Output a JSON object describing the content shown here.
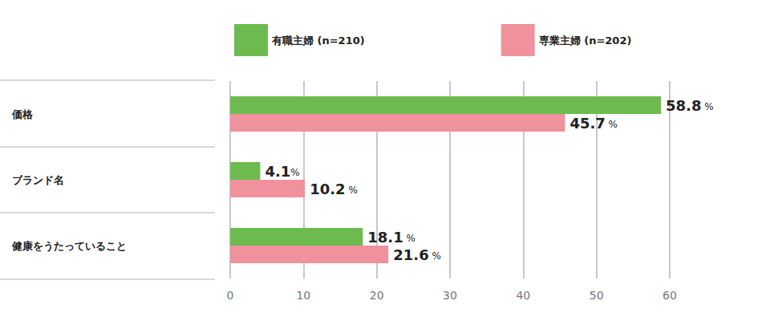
{
  "chart_data": {
    "type": "bar",
    "orientation": "horizontal",
    "categories": [
      "価格",
      "ブランド名",
      "健康をうたっていること"
    ],
    "series": [
      {
        "name": "有職主婦 (n=210)",
        "color": "#6dbb4f",
        "values": [
          58.8,
          4.1,
          18.1
        ],
        "value_labels": [
          "58.8 %",
          "4.1%",
          "18.1 %"
        ]
      },
      {
        "name": "専業主婦 (n=202)",
        "color": "#f0919e",
        "values": [
          45.7,
          10.2,
          21.6
        ],
        "value_labels": [
          "45.7 %",
          "10.2 %",
          "21.6 %"
        ]
      }
    ],
    "xlim": [
      0,
      60
    ],
    "xticks": [
      0,
      10,
      20,
      30,
      40,
      50,
      60
    ],
    "grid": true,
    "data_labels": true,
    "legend": "top"
  }
}
